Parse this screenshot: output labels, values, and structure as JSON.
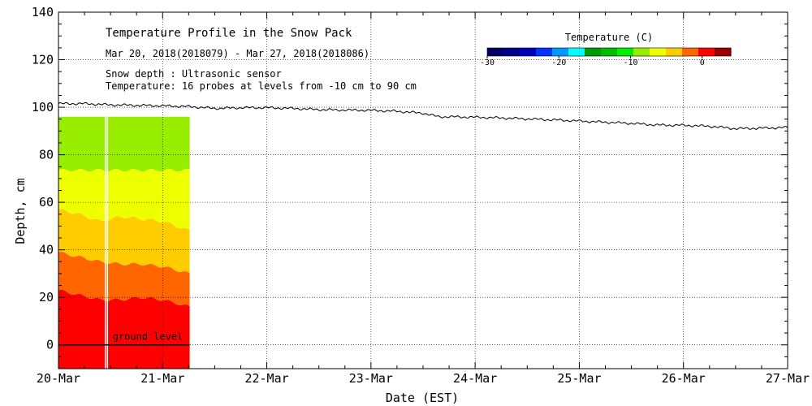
{
  "chart_data": {
    "type": "area",
    "title": "Temperature Profile in the Snow Pack",
    "subtitle": "Mar 20, 2018(2018079) - Mar 27, 2018(2018086)",
    "annotations": [
      "Snow depth : Ultrasonic sensor",
      "Temperature: 16 probes at levels from -10 cm to 90 cm",
      "ground level"
    ],
    "xlabel": "Date (EST)",
    "ylabel": "Depth, cm",
    "x_ticks": [
      "20-Mar",
      "21-Mar",
      "22-Mar",
      "23-Mar",
      "24-Mar",
      "25-Mar",
      "26-Mar",
      "27-Mar"
    ],
    "y_ticks": [
      0,
      20,
      40,
      60,
      80,
      100,
      120,
      140
    ],
    "xlim": [
      0,
      7
    ],
    "ylim": [
      -10,
      140
    ],
    "grid": true,
    "snow_depth": {
      "x": [
        0,
        0.25,
        0.5,
        0.75,
        1.0,
        1.25,
        1.5,
        1.75,
        2.0,
        2.25,
        2.5,
        2.75,
        3.0,
        3.25,
        3.5,
        3.65,
        3.75,
        4.0,
        4.25,
        4.5,
        4.75,
        5.0,
        5.25,
        5.5,
        5.75,
        6.0,
        6.25,
        6.5,
        6.75,
        7.0
      ],
      "y": [
        101.5,
        101.5,
        101,
        100.8,
        100.6,
        100.3,
        99.5,
        99.8,
        99.8,
        99.5,
        99,
        98.8,
        98.7,
        98.3,
        97.5,
        96,
        96,
        95.8,
        95.5,
        95.1,
        94.7,
        94.2,
        93.7,
        93.2,
        92.5,
        92.4,
        92,
        91,
        91.2,
        91.5
      ]
    },
    "temperature_bands": {
      "x_start": 0,
      "x_end": 1.26,
      "bottom": -10,
      "top": 96,
      "x": [
        0,
        0.2,
        0.4,
        0.6,
        0.8,
        1.0,
        1.26
      ],
      "boundaries": [
        {
          "y": [
            23,
            21,
            19,
            19,
            20,
            19,
            16
          ]
        },
        {
          "y": [
            39,
            37,
            35,
            34,
            34,
            33,
            30
          ]
        },
        {
          "y": [
            57,
            55,
            52,
            54,
            53,
            52,
            48
          ]
        },
        {
          "y": [
            73.5,
            73.5,
            73.5,
            73.5,
            73.5,
            73.5,
            73.5
          ]
        }
      ],
      "colors": [
        "#ff0000",
        "#ff6600",
        "#ffcc00",
        "#eeff00",
        "#99ee00"
      ],
      "white_gaps_x": [
        0.45,
        0.47
      ]
    },
    "colorbar": {
      "label": "Temperature (C)",
      "tick_labels": [
        "-30",
        "-20",
        "-10",
        "0"
      ],
      "min": -30,
      "max": 4,
      "colors": [
        "#000066",
        "#000088",
        "#0000bb",
        "#0033ff",
        "#0099ff",
        "#00ffff",
        "#009900",
        "#00bb00",
        "#00ee00",
        "#99ee00",
        "#eeff00",
        "#ffcc00",
        "#ff6600",
        "#ff0000",
        "#990000"
      ]
    }
  }
}
